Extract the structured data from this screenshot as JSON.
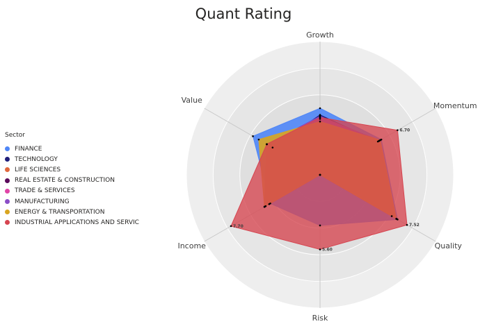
{
  "chart_data": {
    "type": "radar",
    "title": "Quant Rating",
    "axes": [
      "Growth",
      "Momentum",
      "Quality",
      "Risk",
      "Income",
      "Value"
    ],
    "rmax": 10,
    "rings": 5,
    "legend": {
      "title": "Sector",
      "position": "left"
    },
    "series": [
      {
        "name": "FINANCE",
        "color": "#4F86F7",
        "values": [
          5.0,
          5.3,
          6.7,
          3.8,
          4.3,
          5.8
        ]
      },
      {
        "name": "TECHNOLOGY",
        "color": "#1F1E7A",
        "values": [
          4.5,
          5.0,
          6.2,
          0,
          4.4,
          4.1
        ]
      },
      {
        "name": "LIFE SCIENCES",
        "color": "#E0683E",
        "values": [
          4.2,
          5.2,
          6.6,
          0,
          4.8,
          4.6
        ]
      },
      {
        "name": "REAL ESTATE & CONSTRUCTION",
        "color": "#5B0A5B",
        "values": [
          4.4,
          5.1,
          6.6,
          0,
          4.8,
          4.6
        ]
      },
      {
        "name": "TRADE & SERVICES",
        "color": "#E044A7",
        "values": [
          4.3,
          5.1,
          6.6,
          0,
          4.7,
          4.6
        ]
      },
      {
        "name": "MANUFACTURING",
        "color": "#8B4EC7",
        "values": [
          4.4,
          5.1,
          6.6,
          0,
          4.8,
          4.6
        ]
      },
      {
        "name": "ENERGY & TRANSPORTATION",
        "color": "#D9A520",
        "values": [
          4.0,
          5.2,
          6.6,
          0,
          4.8,
          5.3
        ]
      },
      {
        "name": "INDUSTRIAL APPLICATIONS AND SERVIC",
        "color": "#D64550",
        "values": [
          4.3,
          6.7,
          7.52,
          5.6,
          7.7,
          4.6
        ]
      }
    ],
    "data_labels": [
      {
        "axis": "Momentum",
        "text": "6.70"
      },
      {
        "axis": "Quality",
        "text": "7.52"
      },
      {
        "axis": "Risk",
        "text": "5.60"
      },
      {
        "axis": "Income",
        "text": "7.70"
      }
    ]
  }
}
